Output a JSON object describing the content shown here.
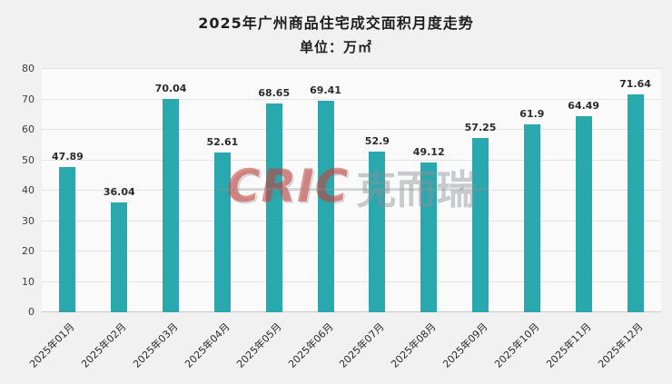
{
  "title": "2025年广州商品住宅成交面积月度走势",
  "subtitle": "单位：万㎡",
  "watermark": {
    "brand": "CRIC",
    "chinese": "克而瑞"
  },
  "chart_data": {
    "type": "bar",
    "title": "2025年广州商品住宅成交面积月度走势",
    "subtitle": "单位：万㎡",
    "categories": [
      "2025年01月",
      "2025年02月",
      "2025年03月",
      "2025年04月",
      "2025年05月",
      "2025年06月",
      "2025年07月",
      "2025年08月",
      "2025年09月",
      "2025年10月",
      "2025年11月",
      "2025年12月"
    ],
    "values": [
      47.89,
      36.04,
      70.04,
      52.61,
      68.65,
      69.41,
      52.9,
      49.12,
      57.25,
      61.9,
      64.49,
      71.64
    ],
    "xlabel": "",
    "ylabel": "",
    "ylim": [
      0,
      80
    ],
    "ytick_step": 10,
    "grid": true,
    "legend": "none",
    "value_labels": true,
    "bar_color": "#29a8ae",
    "value_label_color": "#2b2b2b"
  }
}
